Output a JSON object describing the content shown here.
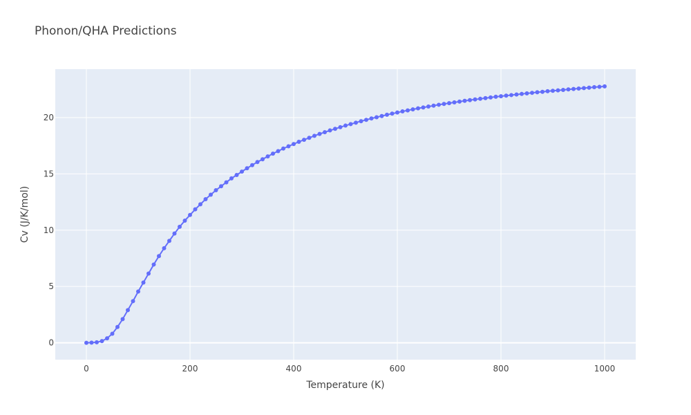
{
  "chart_data": {
    "type": "line",
    "title": "Phonon/QHA Predictions",
    "xlabel": "Temperature (K)",
    "ylabel": "Cv (J/K/mol)",
    "xlim": [
      -60,
      1060
    ],
    "ylim": [
      -1.5,
      24.3
    ],
    "xticks": [
      0,
      200,
      400,
      600,
      800,
      1000
    ],
    "yticks": [
      0,
      5,
      10,
      15,
      20
    ],
    "grid": true,
    "legend": "none",
    "colors": {
      "plot_bg": "#e5ecf6",
      "grid": "#ffffff",
      "line": "#636efa"
    },
    "series": [
      {
        "x": [
          0,
          10,
          20,
          30,
          40,
          50,
          60,
          70,
          80,
          90,
          100,
          110,
          120,
          130,
          140,
          150,
          160,
          170,
          180,
          190,
          200,
          210,
          220,
          230,
          240,
          250,
          260,
          270,
          280,
          290,
          300,
          310,
          320,
          330,
          340,
          350,
          360,
          370,
          380,
          390,
          400,
          410,
          420,
          430,
          440,
          450,
          460,
          470,
          480,
          490,
          500,
          510,
          520,
          530,
          540,
          550,
          560,
          570,
          580,
          590,
          600,
          610,
          620,
          630,
          640,
          650,
          660,
          670,
          680,
          690,
          700,
          710,
          720,
          730,
          740,
          750,
          760,
          770,
          780,
          790,
          800,
          810,
          820,
          830,
          840,
          850,
          860,
          870,
          880,
          890,
          900,
          910,
          920,
          930,
          940,
          950,
          960,
          970,
          980,
          990,
          1000
        ],
        "values": [
          0.0,
          0.01,
          0.04,
          0.15,
          0.4,
          0.8,
          1.4,
          2.1,
          2.9,
          3.7,
          4.55,
          5.35,
          6.15,
          6.95,
          7.7,
          8.4,
          9.05,
          9.7,
          10.3,
          10.85,
          11.35,
          11.85,
          12.3,
          12.75,
          13.15,
          13.55,
          13.9,
          14.25,
          14.6,
          14.9,
          15.2,
          15.5,
          15.78,
          16.05,
          16.3,
          16.55,
          16.8,
          17.02,
          17.25,
          17.45,
          17.65,
          17.85,
          18.03,
          18.2,
          18.38,
          18.55,
          18.7,
          18.86,
          19.0,
          19.15,
          19.29,
          19.42,
          19.55,
          19.68,
          19.8,
          19.92,
          20.03,
          20.14,
          20.25,
          20.35,
          20.45,
          20.55,
          20.64,
          20.73,
          20.82,
          20.9,
          20.98,
          21.06,
          21.14,
          21.21,
          21.28,
          21.35,
          21.42,
          21.49,
          21.55,
          21.61,
          21.67,
          21.73,
          21.79,
          21.85,
          21.9,
          21.95,
          22.0,
          22.05,
          22.1,
          22.15,
          22.2,
          22.25,
          22.29,
          22.34,
          22.38,
          22.42,
          22.46,
          22.5,
          22.54,
          22.58,
          22.62,
          22.66,
          22.7,
          22.73,
          22.77
        ]
      }
    ]
  }
}
